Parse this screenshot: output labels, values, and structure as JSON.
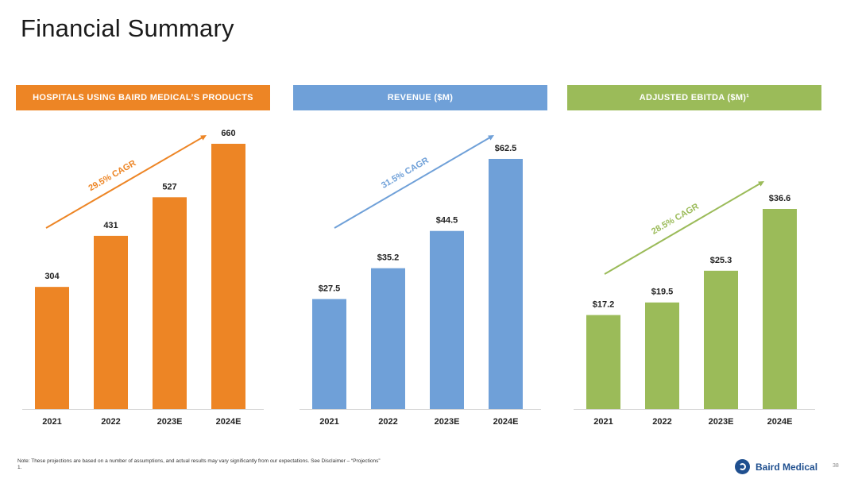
{
  "title": "Financial Summary",
  "chart_data": [
    {
      "type": "bar",
      "title": "HOSPITALS USING BAIRD MEDICAL’S PRODUCTS",
      "color": "#ED8525",
      "categories": [
        "2021",
        "2022",
        "2023E",
        "2024E"
      ],
      "values": [
        304,
        431,
        527,
        660
      ],
      "value_labels": [
        "304",
        "431",
        "527",
        "660"
      ],
      "cagr_label": "29.5% CAGR"
    },
    {
      "type": "bar",
      "title": "REVENUE ($M)",
      "color": "#6FA0D8",
      "categories": [
        "2021",
        "2022",
        "2023E",
        "2024E"
      ],
      "values": [
        27.5,
        35.2,
        44.5,
        62.5
      ],
      "value_labels": [
        "$27.5",
        "$35.2",
        "$44.5",
        "$62.5"
      ],
      "cagr_label": "31.5% CAGR"
    },
    {
      "type": "bar",
      "title": "ADJUSTED EBITDA ($M)¹",
      "color": "#9BBB59",
      "categories": [
        "2021",
        "2022",
        "2023E",
        "2024E"
      ],
      "values": [
        17.2,
        19.5,
        25.3,
        36.6
      ],
      "value_labels": [
        "$17.2",
        "$19.5",
        "$25.3",
        "$36.6"
      ],
      "cagr_label": "28.5% CAGR"
    }
  ],
  "footer": {
    "note": "Note: These projections are based on a number of assumptions, and actual results may vary significantly from our expectations. See Disclaimer – “Projections”",
    "footnote_marker": "1.",
    "logo_text": "Baird Medical",
    "page_number": "38"
  }
}
